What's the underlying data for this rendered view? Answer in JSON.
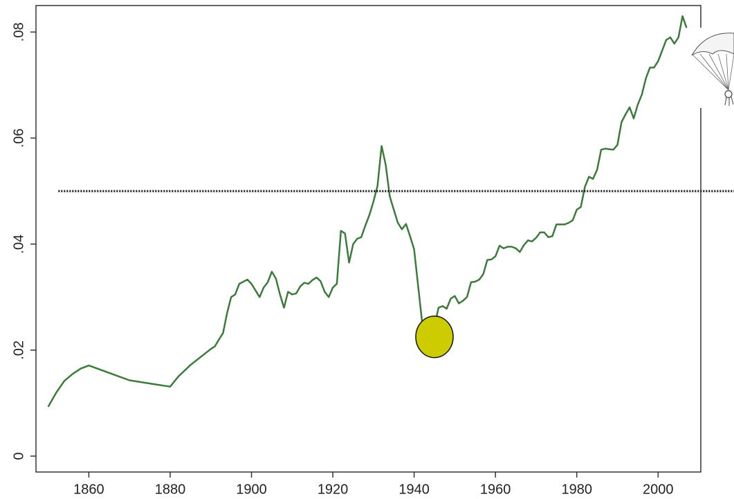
{
  "chart_data": {
    "type": "line",
    "color": "#3b7a3b",
    "x": [
      1850,
      1852,
      1854,
      1856,
      1858,
      1860,
      1865,
      1870,
      1875,
      1880,
      1882,
      1885,
      1888,
      1890,
      1891,
      1892,
      1893,
      1894,
      1895,
      1896,
      1897,
      1899,
      1900,
      1902,
      1903,
      1904,
      1905,
      1906,
      1907,
      1908,
      1909,
      1910,
      1911,
      1912,
      1913,
      1914,
      1915,
      1916,
      1917,
      1918,
      1919,
      1920,
      1921,
      1922,
      1923,
      1924,
      1925,
      1926,
      1927,
      1928,
      1929,
      1930,
      1931,
      1932,
      1933,
      1934,
      1935,
      1936,
      1937,
      1938,
      1939,
      1940,
      1941,
      1942,
      1944,
      1945,
      1946,
      1947,
      1948,
      1949,
      1950,
      1951,
      1952,
      1953,
      1954,
      1955,
      1956,
      1957,
      1958,
      1959,
      1960,
      1961,
      1962,
      1963,
      1964,
      1965,
      1966,
      1967,
      1968,
      1969,
      1970,
      1971,
      1972,
      1973,
      1974,
      1975,
      1976,
      1977,
      1978,
      1979,
      1980,
      1981,
      1982,
      1983,
      1984,
      1985,
      1986,
      1987,
      1988,
      1989,
      1990,
      1991,
      1992,
      1993,
      1994,
      1995,
      1996,
      1997,
      1998,
      1999,
      2000,
      2001,
      2002,
      2003,
      2004,
      2005,
      2006,
      2007
    ],
    "values": [
      0.0093,
      0.012,
      0.0142,
      0.0155,
      0.0165,
      0.0171,
      0.0157,
      0.0143,
      0.0137,
      0.0131,
      0.015,
      0.0172,
      0.019,
      0.0202,
      0.0207,
      0.022,
      0.0232,
      0.027,
      0.03,
      0.0305,
      0.0325,
      0.0333,
      0.0325,
      0.03,
      0.0318,
      0.0328,
      0.0348,
      0.0335,
      0.0305,
      0.028,
      0.031,
      0.0305,
      0.0307,
      0.032,
      0.0327,
      0.0325,
      0.0332,
      0.0337,
      0.033,
      0.031,
      0.03,
      0.0318,
      0.0325,
      0.0425,
      0.042,
      0.0365,
      0.04,
      0.041,
      0.0413,
      0.0435,
      0.0455,
      0.048,
      0.051,
      0.0585,
      0.055,
      0.049,
      0.0465,
      0.044,
      0.0428,
      0.0438,
      0.0415,
      0.039,
      0.032,
      0.025,
      0.024,
      0.0245,
      0.028,
      0.0283,
      0.0278,
      0.0297,
      0.0302,
      0.0288,
      0.0293,
      0.03,
      0.0328,
      0.0329,
      0.0333,
      0.0343,
      0.037,
      0.0371,
      0.0377,
      0.0397,
      0.0392,
      0.0395,
      0.0395,
      0.0392,
      0.0385,
      0.0398,
      0.0407,
      0.0405,
      0.0412,
      0.0422,
      0.0422,
      0.0413,
      0.0415,
      0.0437,
      0.0437,
      0.0437,
      0.044,
      0.0445,
      0.0465,
      0.047,
      0.0508,
      0.0527,
      0.0523,
      0.054,
      0.0578,
      0.058,
      0.0579,
      0.0578,
      0.0587,
      0.063,
      0.0645,
      0.0658,
      0.0637,
      0.0663,
      0.0682,
      0.0713,
      0.0733,
      0.0733,
      0.0745,
      0.0765,
      0.0785,
      0.079,
      0.0778,
      0.079,
      0.083,
      0.0808
    ],
    "xlim": [
      1847,
      2010.5
    ],
    "xticks": [
      1860,
      1880,
      1900,
      1920,
      1940,
      1960,
      1980,
      2000
    ],
    "ylim": [
      -0.003,
      0.085
    ],
    "yticks": [
      0,
      {
        "value": 0.02,
        "label": ".02"
      },
      {
        "value": 0.04,
        "label": ".04"
      },
      {
        "value": 0.06,
        "label": ".06"
      },
      {
        "value": 0.08,
        "label": ".08"
      }
    ],
    "reference_line": {
      "y": 0.05,
      "xstart": 1852.5
    },
    "highlight": {
      "x": 1945,
      "y": 0.0225,
      "color": "#cccc00"
    }
  }
}
